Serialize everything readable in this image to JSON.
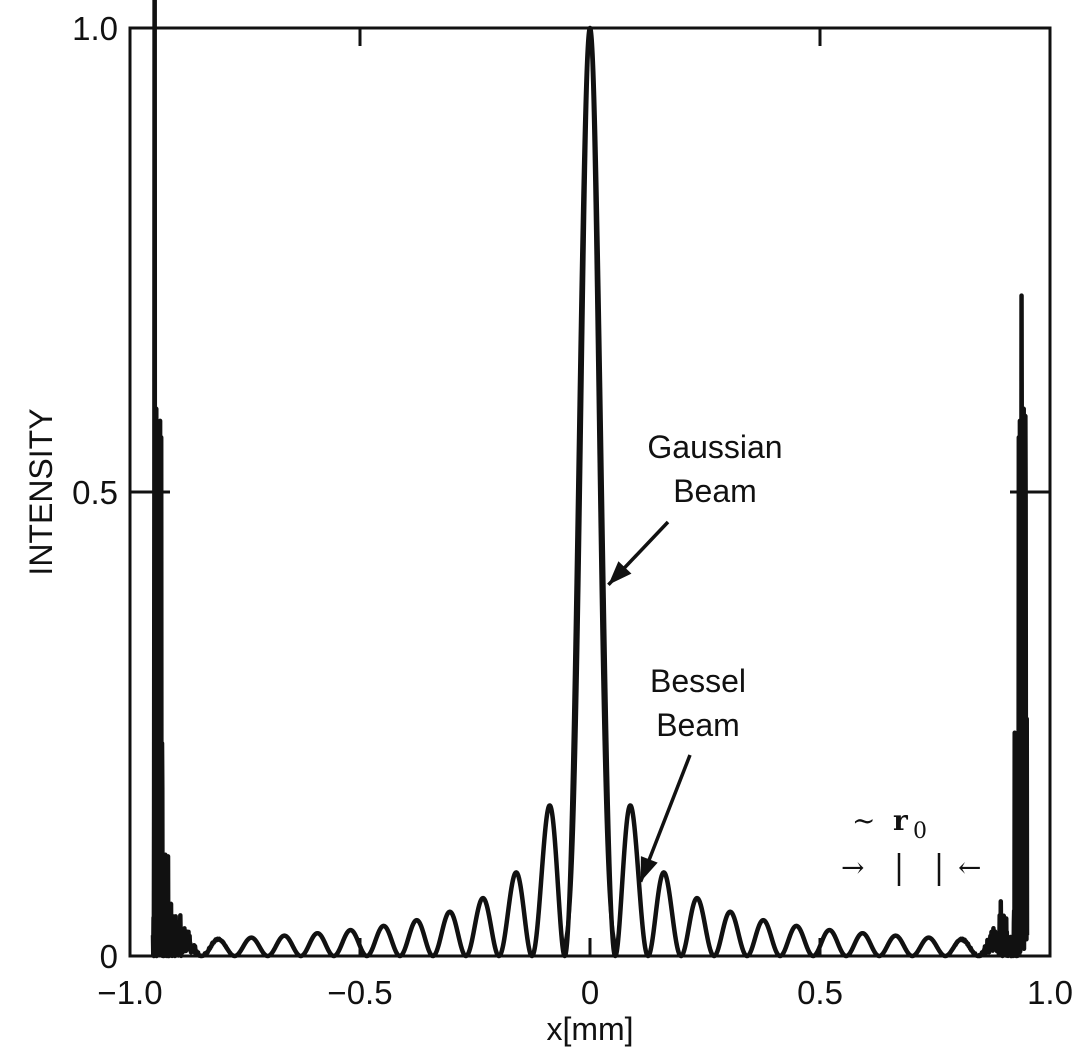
{
  "chart_data": {
    "type": "line",
    "xlabel": "x[mm]",
    "ylabel": "INTENSITY",
    "xlim": [
      -1.0,
      1.0
    ],
    "ylim": [
      0,
      1.0
    ],
    "x_ticks": [
      {
        "value": -1.0,
        "label": "−1.0"
      },
      {
        "value": -0.5,
        "label": "−0.5"
      },
      {
        "value": 0,
        "label": "0"
      },
      {
        "value": 0.5,
        "label": "0.5"
      },
      {
        "value": 1.0,
        "label": "1.0"
      }
    ],
    "y_ticks": [
      {
        "value": 0,
        "label": "0"
      },
      {
        "value": 0.5,
        "label": "0.5"
      },
      {
        "value": 1.0,
        "label": "1.0"
      }
    ],
    "grid": false,
    "legend": "none",
    "series": [
      {
        "key": "gaussian",
        "function": "gaussian",
        "center": 0,
        "half_width_at_zero": 0.055,
        "peak": 1.0
      },
      {
        "key": "bessel",
        "function": "bessel_j0_squared",
        "center": 0,
        "first_zero": 0.055,
        "peak": 1.0,
        "x_range": [
          -0.95,
          0.95
        ]
      }
    ],
    "annotations": [
      {
        "key": "gaussian",
        "lines": [
          "Gaussian",
          "Beam"
        ],
        "arrow_to": {
          "x": 0.04,
          "y": 0.4
        }
      },
      {
        "key": "bessel",
        "lines": [
          "Bessel",
          "Beam"
        ],
        "arrow_to": {
          "x": 0.11,
          "y": 0.08
        }
      }
    ],
    "width_marker": {
      "symbol": "~",
      "label": "r",
      "subscript": "0",
      "left_arrow": "→",
      "right_arrow": "←"
    }
  }
}
